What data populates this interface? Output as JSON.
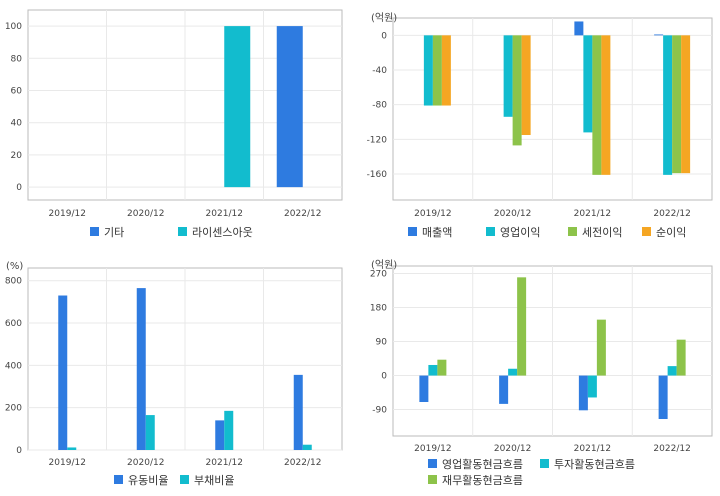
{
  "colors": {
    "blue": "#2e7be0",
    "cyan": "#12bcce",
    "green": "#8dc34a",
    "orange": "#f5a623",
    "grid": "#e9e9e9",
    "border": "#bbbbbb"
  },
  "chart_data": [
    {
      "type": "bar",
      "unit_label": "",
      "categories": [
        "2019/12",
        "2020/12",
        "2021/12",
        "2022/12"
      ],
      "yticks": [
        0,
        20,
        40,
        60,
        80,
        100
      ],
      "ylim": [
        -8,
        110
      ],
      "series": [
        {
          "name": "기타",
          "color": "#2e7be0",
          "values": [
            0,
            0,
            0,
            100
          ]
        },
        {
          "name": "라이센스아웃",
          "color": "#12bcce",
          "values": [
            0,
            0,
            100,
            0
          ]
        }
      ]
    },
    {
      "type": "bar",
      "unit_label": "(억원)",
      "categories": [
        "2019/12",
        "2020/12",
        "2021/12",
        "2022/12"
      ],
      "yticks": [
        0,
        -40,
        -80,
        -120,
        -160
      ],
      "ylim": [
        -190,
        20
      ],
      "series": [
        {
          "name": "매출액",
          "color": "#2e7be0",
          "values": [
            0,
            0,
            16,
            1
          ]
        },
        {
          "name": "영업이익",
          "color": "#12bcce",
          "values": [
            -81,
            -94,
            -112,
            -161
          ]
        },
        {
          "name": "세전이익",
          "color": "#8dc34a",
          "values": [
            -81,
            -127,
            -161,
            -159
          ]
        },
        {
          "name": "순이익",
          "color": "#f5a623",
          "values": [
            -81,
            -115,
            -161,
            -159
          ]
        }
      ]
    },
    {
      "type": "bar",
      "unit_label": "(%)",
      "categories": [
        "2019/12",
        "2020/12",
        "2021/12",
        "2022/12"
      ],
      "yticks": [
        0,
        200,
        400,
        600,
        800
      ],
      "ylim": [
        0,
        860
      ],
      "series": [
        {
          "name": "유동비율",
          "color": "#2e7be0",
          "values": [
            730,
            765,
            140,
            355
          ]
        },
        {
          "name": "부채비율",
          "color": "#12bcce",
          "values": [
            12,
            165,
            185,
            25
          ]
        }
      ]
    },
    {
      "type": "bar",
      "unit_label": "(억원)",
      "categories": [
        "2019/12",
        "2020/12",
        "2021/12",
        "2022/12"
      ],
      "yticks": [
        270,
        180,
        90,
        0,
        -90
      ],
      "ylim": [
        -160,
        290
      ],
      "series": [
        {
          "name": "영업활동현금흐름",
          "color": "#2e7be0",
          "values": [
            -70,
            -75,
            -92,
            -115
          ]
        },
        {
          "name": "투자활동현금흐름",
          "color": "#12bcce",
          "values": [
            28,
            18,
            -58,
            25
          ]
        },
        {
          "name": "재무활동현금흐름",
          "color": "#8dc34a",
          "values": [
            42,
            260,
            148,
            95
          ]
        }
      ]
    }
  ]
}
